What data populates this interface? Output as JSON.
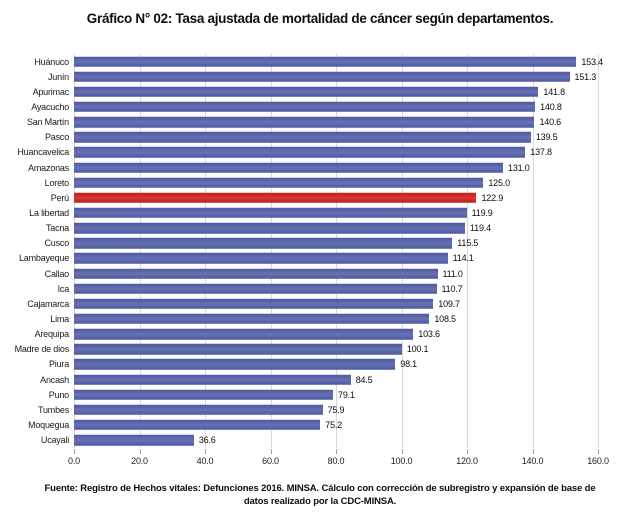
{
  "title": "Gráfico N° 02: Tasa ajustada de mortalidad de cáncer según departamentos.",
  "source": "Fuente: Registro de Hechos vitales: Defunciones 2016. MINSA. Cálculo con corrección de subregistro y expansión de base de datos realizado por la CDC-MINSA.",
  "chart_data": {
    "type": "bar",
    "orientation": "horizontal",
    "title": "Gráfico N° 02: Tasa ajustada de mortalidad de cáncer según departamentos.",
    "xlabel": "",
    "ylabel": "",
    "xlim": [
      0,
      160
    ],
    "xticks": [
      "0.0",
      "20.0",
      "40.0",
      "60.0",
      "80.0",
      "100.0",
      "120.0",
      "140.0",
      "160.0"
    ],
    "grid": true,
    "value_labels": true,
    "categories": [
      "Huánuco",
      "Junín",
      "Apurimac",
      "Ayacucho",
      "San Martín",
      "Pasco",
      "Huancavelica",
      "Amazonas",
      "Loreto",
      "Perú",
      "La libertad",
      "Tacna",
      "Cusco",
      "Lambayeque",
      "Callao",
      "Ica",
      "Cajamarca",
      "Lima",
      "Arequipa",
      "Madre de dios",
      "Piura",
      "Ancash",
      "Puno",
      "Tumbes",
      "Moquegua",
      "Ucayali"
    ],
    "values": [
      153.4,
      151.3,
      141.8,
      140.8,
      140.6,
      139.5,
      137.8,
      131.0,
      125.0,
      122.9,
      119.9,
      119.4,
      115.5,
      114.1,
      111.0,
      110.7,
      109.7,
      108.5,
      103.6,
      100.1,
      98.1,
      84.5,
      79.1,
      75.9,
      75.2,
      36.6
    ],
    "value_labels_text": [
      "153.4",
      "151.3",
      "141.8",
      "140.8",
      "140.6",
      "139.5",
      "137.8",
      "131.0",
      "125.0",
      "122.9",
      "119.9",
      "119.4",
      "115.5",
      "114.1",
      "111.0",
      "110.7",
      "109.7",
      "108.5",
      "103.6",
      "100.1",
      "98.1",
      "84.5",
      "79.1",
      "75.9",
      "75.2",
      "36.6"
    ],
    "highlight_category": "Perú",
    "colors": {
      "bar": "#5B67AC",
      "highlight": "#CD2B27",
      "gridline": "#D9D9D9"
    },
    "legend": null
  }
}
